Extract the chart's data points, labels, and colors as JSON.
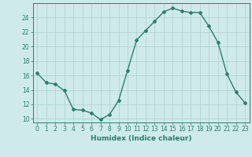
{
  "x": [
    0,
    1,
    2,
    3,
    4,
    5,
    6,
    7,
    8,
    9,
    10,
    11,
    12,
    13,
    14,
    15,
    16,
    17,
    18,
    19,
    20,
    21,
    22,
    23
  ],
  "y": [
    16.3,
    15.0,
    14.8,
    13.9,
    11.3,
    11.2,
    10.8,
    9.9,
    10.6,
    12.5,
    16.7,
    20.9,
    22.2,
    23.5,
    24.8,
    25.3,
    24.9,
    24.7,
    24.7,
    22.8,
    20.6,
    16.2,
    13.7,
    12.2
  ],
  "line_color": "#2e7d6e",
  "marker": "D",
  "marker_size": 2,
  "bg_color": "#ceeaea",
  "grid_color": "#b0cfcf",
  "xlabel": "Humidex (Indice chaleur)",
  "xlim": [
    -0.5,
    23.5
  ],
  "ylim": [
    9.5,
    26.0
  ],
  "yticks": [
    10,
    12,
    14,
    16,
    18,
    20,
    22,
    24
  ],
  "xticks": [
    0,
    1,
    2,
    3,
    4,
    5,
    6,
    7,
    8,
    9,
    10,
    11,
    12,
    13,
    14,
    15,
    16,
    17,
    18,
    19,
    20,
    21,
    22,
    23
  ],
  "tick_color": "#2e7d6e",
  "label_fontsize": 6.5,
  "tick_fontsize": 5.5,
  "linewidth": 1.0
}
